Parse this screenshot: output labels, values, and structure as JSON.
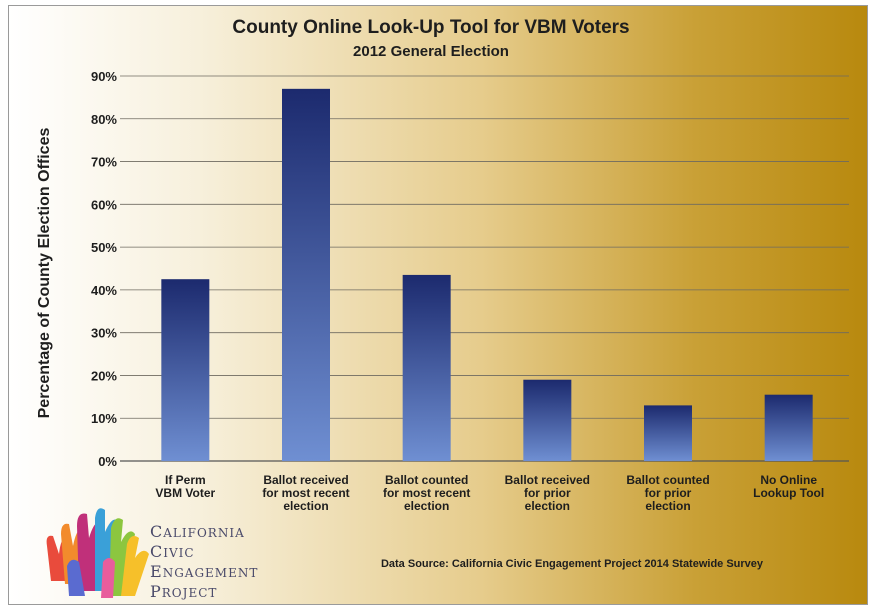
{
  "chart_data": {
    "type": "bar",
    "title": "County Online Look-Up Tool for VBM Voters",
    "subtitle": "2012 General Election",
    "ylabel": "Percentage of County Election Offices",
    "xlabel": "",
    "ylim": [
      0,
      90
    ],
    "yticks": [
      "0%",
      "10%",
      "20%",
      "30%",
      "40%",
      "50%",
      "60%",
      "70%",
      "80%",
      "90%"
    ],
    "grid": true,
    "categories": [
      [
        "If Perm",
        "VBM Voter"
      ],
      [
        "Ballot received",
        "for most recent",
        "election"
      ],
      [
        "Ballot counted",
        "for most recent",
        "election"
      ],
      [
        "Ballot received",
        "for prior",
        "election"
      ],
      [
        "Ballot counted",
        "for prior",
        "election"
      ],
      [
        "No Online",
        "Lookup Tool"
      ]
    ],
    "values": [
      42.5,
      87,
      43.5,
      19,
      13,
      15.5
    ],
    "bar_colors": {
      "top": "#1c2a6e",
      "bottom": "#6f8fd2"
    }
  },
  "source_note": "Data Source: California Civic Engagement Project 2014 Statewide Survey",
  "logo": {
    "lines": [
      {
        "initial": "C",
        "rest": "ALIFORNIA"
      },
      {
        "initial": "C",
        "rest": "IVIC"
      },
      {
        "initial": "E",
        "rest": "NGAGEMENT"
      },
      {
        "initial": "P",
        "rest": "ROJECT"
      }
    ]
  }
}
